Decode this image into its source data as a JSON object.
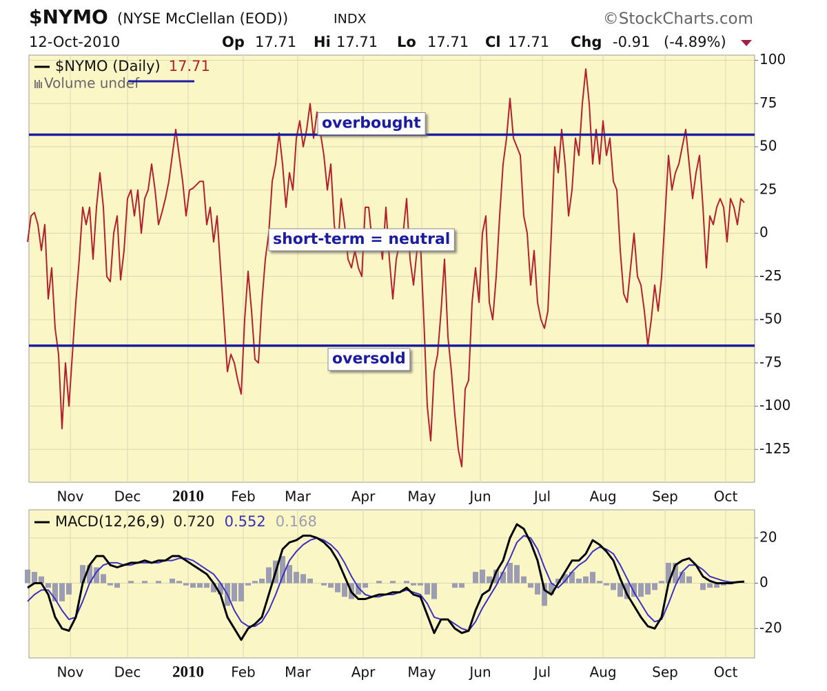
{
  "header": {
    "symbol": "$NYMO",
    "name": "(NYSE McClellan (EOD))",
    "exchange": "INDX",
    "source": "©StockCharts.com",
    "date": "12-Oct-2010",
    "quote": [
      {
        "label": "Op",
        "value": "17.71"
      },
      {
        "label": "Hi",
        "value": "17.71"
      },
      {
        "label": "Lo",
        "value": "17.71"
      },
      {
        "label": "Cl",
        "value": "17.71"
      },
      {
        "label": "Chg",
        "value": "-0.91"
      }
    ],
    "change_pct": "(-4.89%)"
  },
  "chart_data": [
    {
      "type": "line",
      "background": "#faf6c6",
      "grid": true,
      "xlim": [
        0.4,
        211
      ],
      "ylim": [
        -144,
        103
      ],
      "yticks": [
        -125,
        -100,
        -75,
        -50,
        -25,
        0,
        25,
        50,
        75,
        100
      ],
      "xticks": [
        {
          "value": 12.4,
          "label": "Nov"
        },
        {
          "value": 29,
          "label": "Dec"
        },
        {
          "value": 46.6,
          "label": "2010",
          "bold": true
        },
        {
          "value": 62.6,
          "label": "Feb"
        },
        {
          "value": 78.4,
          "label": "Mar"
        },
        {
          "value": 97.4,
          "label": "Apr"
        },
        {
          "value": 114.4,
          "label": "May"
        },
        {
          "value": 131.4,
          "label": "Jun"
        },
        {
          "value": 149.4,
          "label": "Jul"
        },
        {
          "value": 167,
          "label": "Aug"
        },
        {
          "value": 185,
          "label": "Sep"
        },
        {
          "value": 202.6,
          "label": "Oct"
        }
      ],
      "volume_note": "Volume undef",
      "hlines": [
        {
          "value": 57,
          "label": "overbought",
          "color": "#1c1ca0"
        },
        {
          "value": -65,
          "label": "oversold",
          "color": "#1c1ca0"
        }
      ],
      "annotations": [
        {
          "text": "short-term = neutral"
        }
      ],
      "series": [
        {
          "name": "$NYMO (Daily)",
          "legend_value": "17.71",
          "color": "#b3202c",
          "values": [
            -5,
            10,
            12,
            5,
            -10,
            5,
            -38,
            -20,
            -55,
            -70,
            -113,
            -75,
            -100,
            -70,
            -40,
            -15,
            15,
            5,
            15,
            -15,
            15,
            35,
            15,
            -25,
            -28,
            0,
            10,
            -27,
            -10,
            20,
            25,
            10,
            25,
            0,
            20,
            25,
            40,
            25,
            5,
            12,
            20,
            30,
            45,
            60,
            45,
            30,
            10,
            25,
            26,
            28,
            30,
            30,
            5,
            15,
            -5,
            10,
            -20,
            -50,
            -80,
            -70,
            -75,
            -85,
            -93,
            -50,
            -22,
            -45,
            -73,
            -75,
            -40,
            -15,
            0,
            30,
            40,
            58,
            40,
            15,
            35,
            25,
            55,
            65,
            50,
            60,
            75,
            55,
            70,
            58,
            45,
            25,
            40,
            5,
            -10,
            20,
            5,
            -15,
            -20,
            -10,
            -20,
            -25,
            15,
            15,
            -5,
            -10,
            0,
            -15,
            15,
            -15,
            -38,
            -15,
            -5,
            0,
            20,
            -15,
            -30,
            -10,
            -5,
            -50,
            -100,
            -120,
            -80,
            -70,
            -45,
            -15,
            -60,
            -80,
            -105,
            -125,
            -135,
            -90,
            -85,
            -40,
            -20,
            -40,
            0,
            10,
            -40,
            -50,
            -25,
            10,
            40,
            55,
            78,
            55,
            50,
            45,
            10,
            0,
            -30,
            -10,
            -40,
            -50,
            -55,
            -45,
            0,
            50,
            35,
            60,
            40,
            10,
            25,
            55,
            45,
            75,
            95,
            75,
            40,
            60,
            40,
            65,
            45,
            55,
            30,
            25,
            -10,
            -35,
            -40,
            -20,
            0,
            -25,
            -30,
            -45,
            -65,
            -50,
            -30,
            -45,
            -25,
            10,
            45,
            25,
            35,
            40,
            50,
            60,
            40,
            20,
            35,
            45,
            15,
            -20,
            10,
            5,
            15,
            20,
            15,
            -5,
            20,
            15,
            5,
            20,
            17.71
          ]
        }
      ]
    },
    {
      "type": "line",
      "background": "#faf6c6",
      "grid": true,
      "xlim": [
        0.2,
        105.5
      ],
      "ylim": [
        -33,
        32.4
      ],
      "yticks": [
        -20,
        0,
        20
      ],
      "xticks": [
        {
          "value": 6.2,
          "label": "Nov"
        },
        {
          "value": 14.5,
          "label": "Dec"
        },
        {
          "value": 23.3,
          "label": "2010",
          "bold": true
        },
        {
          "value": 31.3,
          "label": "Feb"
        },
        {
          "value": 39.2,
          "label": "Mar"
        },
        {
          "value": 48.7,
          "label": "Apr"
        },
        {
          "value": 57.2,
          "label": "May"
        },
        {
          "value": 65.7,
          "label": "Jun"
        },
        {
          "value": 74.7,
          "label": "Jul"
        },
        {
          "value": 83.5,
          "label": "Aug"
        },
        {
          "value": 92.5,
          "label": "Sep"
        },
        {
          "value": 101.3,
          "label": "Oct"
        }
      ],
      "series": [
        {
          "type": "bar",
          "legend_value": "0.168",
          "color": "#9d9db2",
          "values": [
            6,
            5,
            3,
            -2,
            -8,
            -8,
            -5,
            0,
            8,
            8,
            7,
            4,
            -1,
            -2,
            0,
            1,
            0,
            1,
            0,
            1,
            0,
            2,
            1,
            -1,
            -2,
            -2,
            -2,
            -4,
            -5,
            -10,
            -8,
            -8,
            -1,
            1,
            2,
            7,
            10,
            12,
            8,
            5,
            4,
            2,
            0,
            -1,
            -2,
            -4,
            -6,
            -7,
            -5,
            -2,
            0,
            1,
            0,
            1,
            0,
            1,
            -1,
            -1,
            -5,
            -7,
            0,
            0,
            -2,
            -2,
            0,
            5,
            6,
            3,
            6,
            5,
            9,
            8,
            3,
            -2,
            -5,
            -10,
            -5,
            2,
            4,
            5,
            2,
            3,
            5,
            1,
            -1,
            -3,
            -6,
            -7,
            -6,
            -6,
            -5,
            -3,
            1,
            9,
            9,
            5,
            3,
            0,
            -3,
            -2,
            -2,
            -1,
            -0.5,
            0,
            0.168
          ]
        },
        {
          "type": "line",
          "legend_value": "0.552",
          "color": "#3b2fc0",
          "values": [
            -8,
            -5,
            -3,
            -3,
            -7,
            -12,
            -16,
            -15,
            -8,
            0,
            5,
            8,
            9,
            9,
            8,
            8,
            9,
            9,
            9,
            9,
            10,
            10,
            11,
            11,
            10,
            8,
            6,
            4,
            0,
            -5,
            -12,
            -17,
            -19,
            -19,
            -17,
            -12,
            -5,
            3,
            10,
            14,
            17,
            19,
            20,
            19,
            17,
            14,
            9,
            3,
            -2,
            -5,
            -6,
            -6,
            -5,
            -5,
            -4,
            -3,
            -4,
            -5,
            -9,
            -15,
            -16,
            -16,
            -18,
            -20,
            -21,
            -17,
            -11,
            -6,
            -1,
            5,
            11,
            18,
            21,
            20,
            15,
            7,
            0,
            -2,
            1,
            5,
            8,
            10,
            14,
            16,
            15,
            13,
            8,
            2,
            -4,
            -9,
            -14,
            -17,
            -16,
            -9,
            -1,
            5,
            8,
            8,
            6,
            3,
            2,
            1,
            0.5,
            0.5,
            0.552
          ]
        },
        {
          "type": "line",
          "name": "MACD(12,26,9)",
          "legend_value": "0.720",
          "color": "#000000",
          "values": [
            -2,
            0,
            0,
            -5,
            -15,
            -20,
            -21,
            -15,
            0,
            8,
            12,
            12,
            8,
            7,
            8,
            9,
            9,
            10,
            9,
            10,
            10,
            12,
            12,
            10,
            8,
            6,
            4,
            0,
            -5,
            -15,
            -20,
            -25,
            -20,
            -18,
            -15,
            -5,
            5,
            15,
            18,
            19,
            21,
            21,
            20,
            18,
            15,
            10,
            3,
            -4,
            -7,
            -7,
            -6,
            -5,
            -5,
            -4,
            -4,
            -2,
            -5,
            -6,
            -14,
            -22,
            -16,
            -16,
            -20,
            -22,
            -21,
            -12,
            -5,
            -3,
            5,
            10,
            20,
            26,
            24,
            18,
            10,
            -3,
            -5,
            0,
            5,
            10,
            10,
            13,
            19,
            17,
            14,
            10,
            2,
            -5,
            -10,
            -15,
            -19,
            -20,
            -15,
            0,
            8,
            10,
            11,
            8,
            3,
            1,
            0,
            0,
            0,
            0.5,
            0.72
          ]
        }
      ]
    }
  ]
}
